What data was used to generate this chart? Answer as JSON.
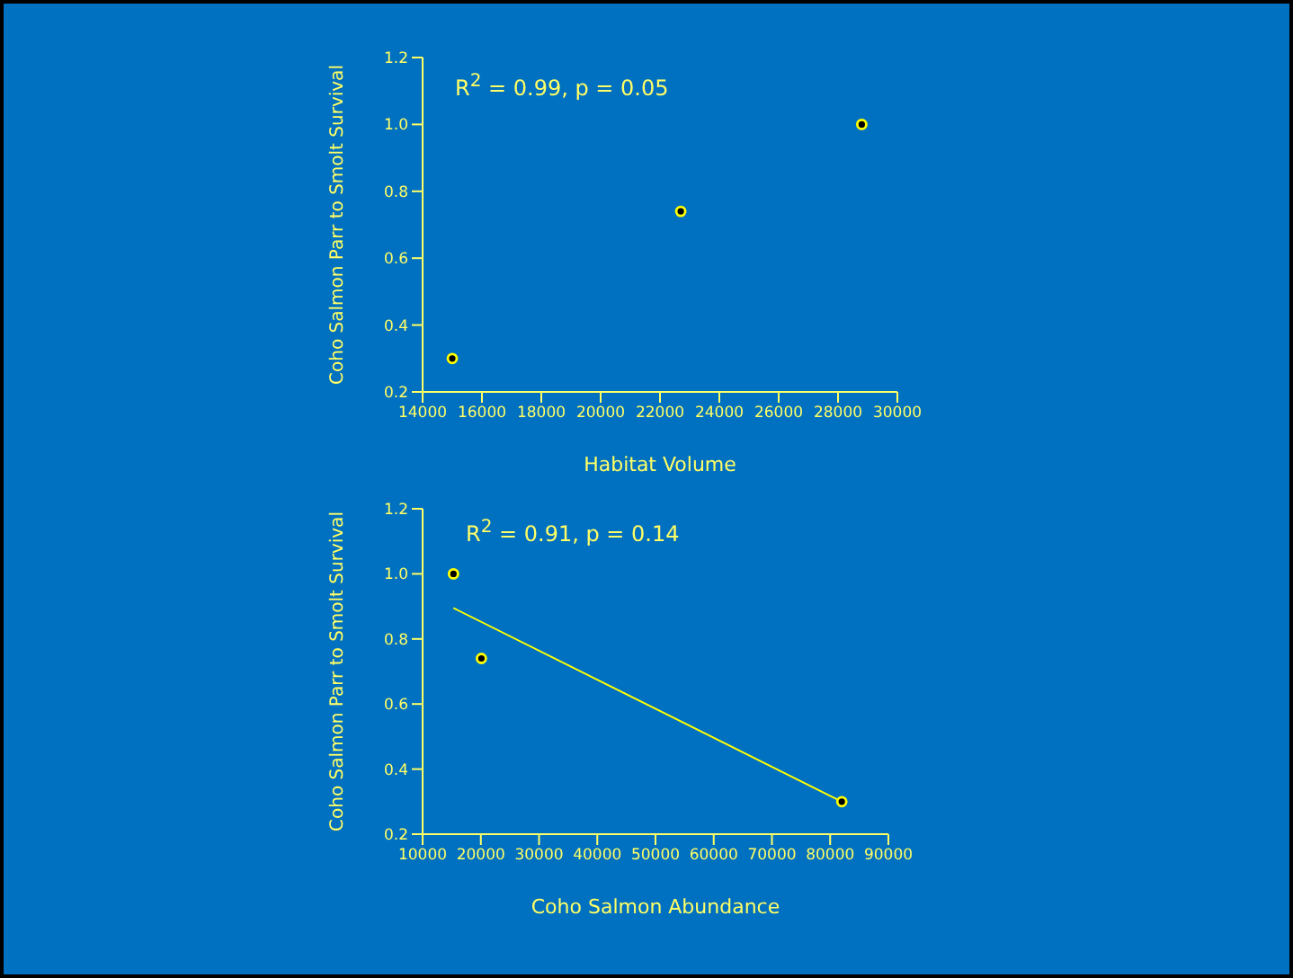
{
  "chart_data": [
    {
      "type": "scatter",
      "xlabel": "Habitat Volume",
      "ylabel": "Coho Salmon Parr to Smolt Survival",
      "annotations": [
        "R$^{2}$ = 0.99, p = 0.05"
      ],
      "xlim": [
        14000,
        30000
      ],
      "xticks": [
        14000,
        16000,
        18000,
        20000,
        22000,
        24000,
        26000,
        28000,
        30000
      ],
      "ylim": [
        0.2,
        1.2
      ],
      "yticks": [
        {
          "value": 0.2,
          "label": "0.2"
        },
        {
          "value": 0.4,
          "label": "0.4"
        },
        {
          "value": 0.6,
          "label": "0.6"
        },
        {
          "value": 0.8,
          "label": "0.8"
        },
        {
          "value": 1.0,
          "label": "1.0"
        },
        {
          "value": 1.2,
          "label": "1.2"
        }
      ],
      "grid": false,
      "legend": false,
      "marker": "circle",
      "series": [
        {
          "color": "#ffff00",
          "x": [
            15000,
            22700,
            28800
          ],
          "values": [
            0.3,
            0.74,
            1.0
          ]
        }
      ]
    },
    {
      "type": "scatter",
      "xlabel": "Coho Salmon Abundance",
      "ylabel": "Coho Salmon Parr to Smolt Survival",
      "annotations": [
        "R$^{2}$ = 0.91, p = 0.14"
      ],
      "xlim": [
        10000,
        90000
      ],
      "xticks": [
        10000,
        20000,
        30000,
        40000,
        50000,
        60000,
        70000,
        80000,
        90000
      ],
      "ylim": [
        0.2,
        1.2
      ],
      "yticks": [
        {
          "value": 0.2,
          "label": "0.2"
        },
        {
          "value": 0.4,
          "label": "0.4"
        },
        {
          "value": 0.6,
          "label": "0.6"
        },
        {
          "value": 0.8,
          "label": "0.8"
        },
        {
          "value": 1.0,
          "label": "1.0"
        },
        {
          "value": 1.2,
          "label": "1.2"
        }
      ],
      "grid": false,
      "legend": false,
      "marker": "circle",
      "series": [
        {
          "color": "#ffff00",
          "x": [
            15300,
            20100,
            82000
          ],
          "values": [
            1.0,
            0.74,
            0.3
          ]
        },
        {
          "type": "line",
          "color": "#ffff00",
          "marker": "none",
          "x": [
            15300,
            82000
          ],
          "values": [
            0.895,
            0.3
          ]
        }
      ]
    }
  ]
}
